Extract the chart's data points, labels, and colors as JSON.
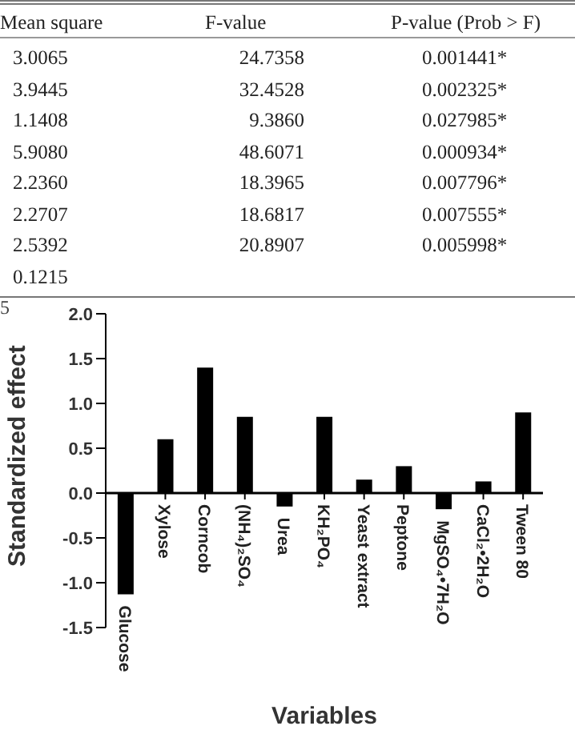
{
  "chart_data": [
    {
      "type": "other",
      "annotations": [
        "Mean square",
        "F-value",
        "P-value (Prob > F)",
        "3.0065",
        "24.7358",
        "0.001441*",
        "3.9445",
        "32.4528",
        "0.002325*",
        "1.1408",
        "9.3860",
        "0.027985*",
        "5.9080",
        "48.6071",
        "0.000934*",
        "2.2360",
        "18.3965",
        "0.007796*",
        "2.2707",
        "18.6817",
        "0.007555*",
        "2.5392",
        "20.8907",
        "0.005998*",
        "0.1215"
      ]
    },
    {
      "type": "bar",
      "annotations": [
        "5"
      ],
      "xlabel": "Variables",
      "ylabel": "Standardized effect",
      "categories": [
        "Glucose",
        "Xylose",
        "Corncob",
        "(NH₄)₂SO₄",
        "Urea",
        "KH₂PO₄",
        "Yeast extract",
        "Peptone",
        "MgSO₄•7H₂O",
        "CaCl₂•2H₂O",
        "Tween 80"
      ],
      "values": [
        -1.13,
        0.6,
        1.4,
        0.85,
        -0.15,
        0.85,
        0.15,
        0.3,
        -0.18,
        0.13,
        0.9
      ],
      "color": "#000000",
      "ylim": [
        -1.5,
        2
      ],
      "yticks": [
        -1.5,
        {
          "value": -1,
          "label": "-1.0"
        },
        -0.5,
        {
          "value": 0,
          "label": "0.0"
        },
        0.5,
        {
          "value": 1,
          "label": "1.0"
        },
        1.5,
        {
          "value": 2,
          "label": "2.0"
        }
      ],
      "grid": false,
      "legend": false
    }
  ]
}
